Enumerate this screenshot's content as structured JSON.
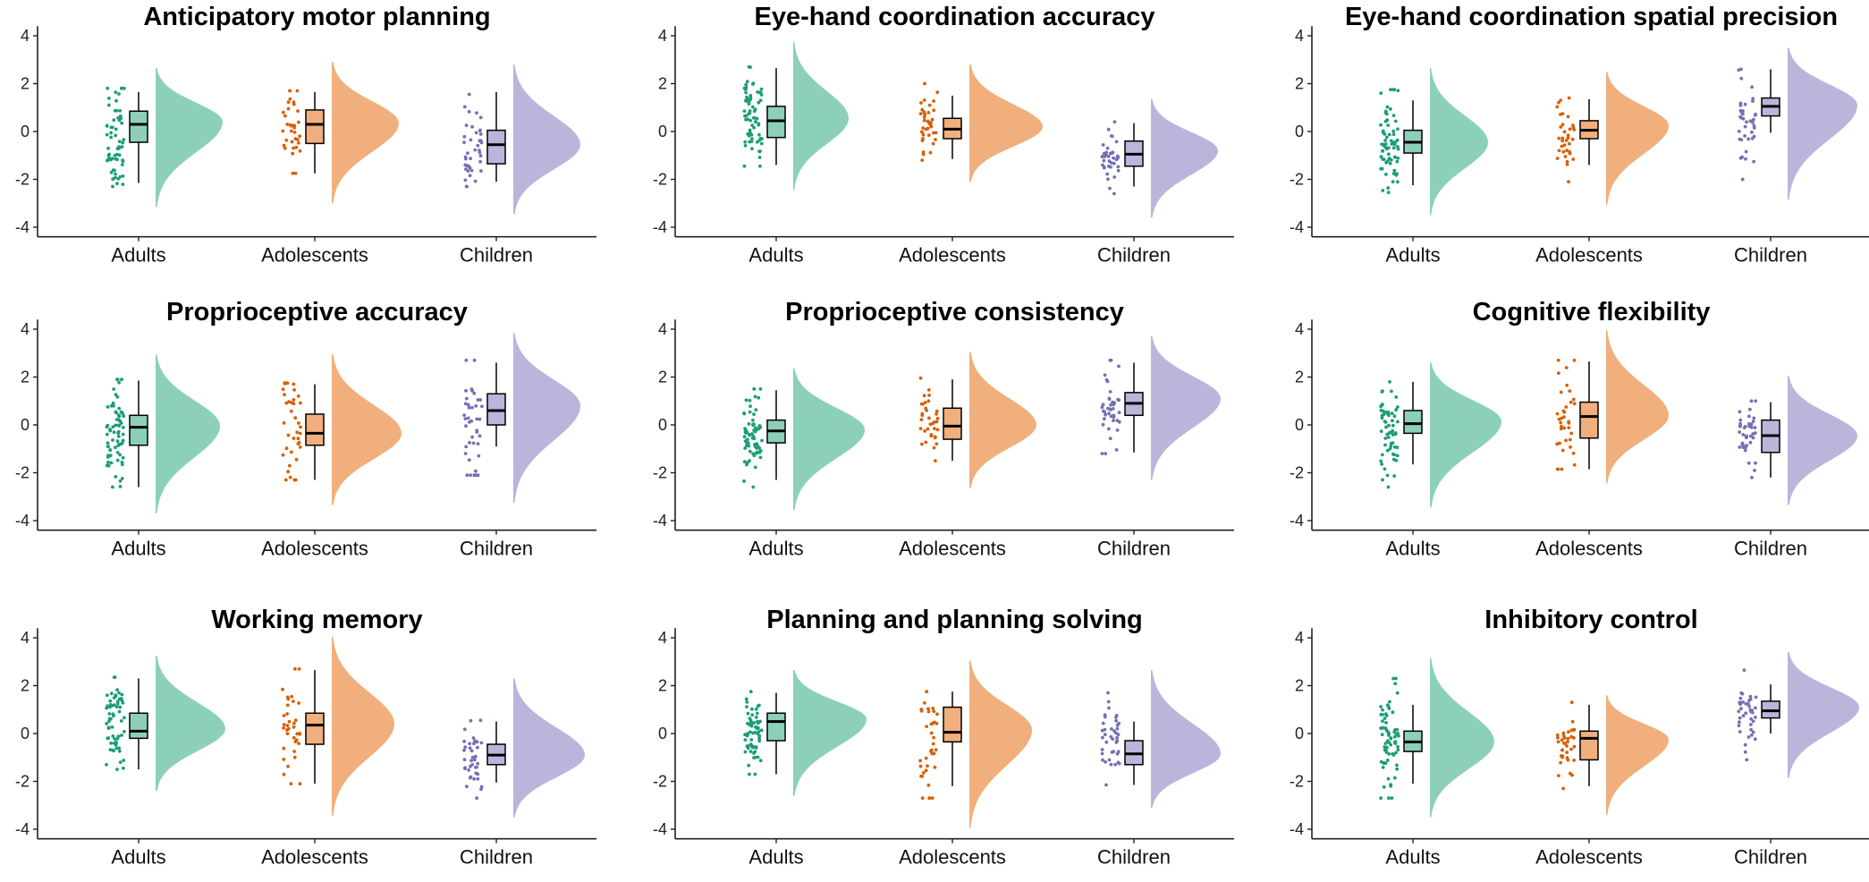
{
  "colors": {
    "Adults": {
      "dot": "#1b9e77",
      "fill": "#8dd0b8"
    },
    "Adolescents": {
      "dot": "#d95f02",
      "fill": "#f0af7c"
    },
    "Children": {
      "dot": "#7570b3",
      "fill": "#b9b5db"
    }
  },
  "chart_data": [
    {
      "type": "raincloud",
      "title": "Anticipatory motor planning",
      "categories": [
        "Adults",
        "Adolescents",
        "Children"
      ],
      "ylim": [
        -4.4,
        4.4
      ],
      "yticks": [
        -4,
        -2,
        0,
        2,
        4
      ],
      "groups": [
        {
          "name": "Adults",
          "q1": -0.45,
          "median": 0.3,
          "q3": 0.85,
          "wlo": -2.15,
          "whi": 1.65,
          "dmin": -3.15,
          "dmax": 2.65,
          "dpeak": 0.4,
          "dwidth": 75,
          "ptmin": -2.3,
          "ptmax": 1.8,
          "n": 62,
          "spread": 1.0,
          "seed": 11
        },
        {
          "name": "Adolescents",
          "q1": -0.5,
          "median": 0.3,
          "q3": 0.9,
          "wlo": -1.75,
          "whi": 1.65,
          "dmin": -3.0,
          "dmax": 2.9,
          "dpeak": 0.35,
          "dwidth": 75,
          "ptmin": -1.75,
          "ptmax": 1.7,
          "n": 36,
          "spread": 1.0,
          "seed": 23
        },
        {
          "name": "Children",
          "q1": -1.35,
          "median": -0.55,
          "q3": 0.05,
          "wlo": -2.1,
          "whi": 1.65,
          "dmin": -3.45,
          "dmax": 2.8,
          "dpeak": -0.55,
          "dwidth": 75,
          "ptmin": -2.3,
          "ptmax": 1.55,
          "n": 40,
          "spread": 1.0,
          "seed": 37
        }
      ]
    },
    {
      "type": "raincloud",
      "title": "Eye-hand coordination accuracy",
      "categories": [
        "Adults",
        "Adolescents",
        "Children"
      ],
      "ylim": [
        -4.4,
        4.4
      ],
      "yticks": [
        -4,
        -2,
        0,
        2,
        4
      ],
      "groups": [
        {
          "name": "Adults",
          "q1": -0.25,
          "median": 0.45,
          "q3": 1.05,
          "wlo": -1.4,
          "whi": 2.65,
          "dmin": -2.45,
          "dmax": 3.75,
          "dpeak": 0.55,
          "dwidth": 62,
          "ptmin": -1.45,
          "ptmax": 2.7,
          "n": 70,
          "spread": 1.0,
          "seed": 41
        },
        {
          "name": "Adolescents",
          "q1": -0.3,
          "median": 0.1,
          "q3": 0.55,
          "wlo": -1.15,
          "whi": 1.5,
          "dmin": -2.1,
          "dmax": 2.8,
          "dpeak": 0.2,
          "dwidth": 82,
          "ptmin": -1.2,
          "ptmax": 2.0,
          "n": 38,
          "spread": 0.8,
          "seed": 53
        },
        {
          "name": "Children",
          "q1": -1.45,
          "median": -0.95,
          "q3": -0.4,
          "wlo": -2.3,
          "whi": 0.35,
          "dmin": -3.6,
          "dmax": 1.35,
          "dpeak": -0.8,
          "dwidth": 75,
          "ptmin": -2.6,
          "ptmax": 0.4,
          "n": 40,
          "spread": 0.7,
          "seed": 67
        }
      ]
    },
    {
      "type": "raincloud",
      "title": "Eye-hand coordination spatial precision",
      "categories": [
        "Adults",
        "Adolescents",
        "Children"
      ],
      "ylim": [
        -4.4,
        4.4
      ],
      "yticks": [
        -4,
        -2,
        0,
        2,
        4
      ],
      "groups": [
        {
          "name": "Adults",
          "q1": -0.9,
          "median": -0.45,
          "q3": 0.05,
          "wlo": -2.25,
          "whi": 1.3,
          "dmin": -3.5,
          "dmax": 2.65,
          "dpeak": -0.45,
          "dwidth": 65,
          "ptmin": -2.55,
          "ptmax": 1.75,
          "n": 70,
          "spread": 0.9,
          "seed": 71
        },
        {
          "name": "Adolescents",
          "q1": -0.3,
          "median": 0.05,
          "q3": 0.45,
          "wlo": -1.4,
          "whi": 1.35,
          "dmin": -3.05,
          "dmax": 2.5,
          "dpeak": 0.25,
          "dwidth": 70,
          "ptmin": -2.1,
          "ptmax": 1.4,
          "n": 36,
          "spread": 0.75,
          "seed": 83
        },
        {
          "name": "Children",
          "q1": 0.65,
          "median": 1.05,
          "q3": 1.4,
          "wlo": -0.05,
          "whi": 2.6,
          "dmin": -2.85,
          "dmax": 3.5,
          "dpeak": 1.1,
          "dwidth": 78,
          "ptmin": -2.0,
          "ptmax": 2.6,
          "n": 40,
          "spread": 0.7,
          "seed": 97
        }
      ]
    },
    {
      "type": "raincloud",
      "title": "Proprioceptive accuracy",
      "categories": [
        "Adults",
        "Adolescents",
        "Children"
      ],
      "ylim": [
        -4.4,
        4.4
      ],
      "yticks": [
        -4,
        -2,
        0,
        2,
        4
      ],
      "groups": [
        {
          "name": "Adults",
          "q1": -0.85,
          "median": -0.1,
          "q3": 0.4,
          "wlo": -2.6,
          "whi": 1.85,
          "dmin": -3.7,
          "dmax": 2.95,
          "dpeak": -0.05,
          "dwidth": 72,
          "ptmin": -2.6,
          "ptmax": 1.9,
          "n": 70,
          "spread": 0.95,
          "seed": 103
        },
        {
          "name": "Adolescents",
          "q1": -0.85,
          "median": -0.35,
          "q3": 0.45,
          "wlo": -2.3,
          "whi": 1.7,
          "dmin": -3.35,
          "dmax": 2.95,
          "dpeak": -0.35,
          "dwidth": 78,
          "ptmin": -2.3,
          "ptmax": 1.75,
          "n": 38,
          "spread": 0.95,
          "seed": 113
        },
        {
          "name": "Children",
          "q1": 0.0,
          "median": 0.6,
          "q3": 1.3,
          "wlo": -0.9,
          "whi": 2.6,
          "dmin": -3.25,
          "dmax": 3.85,
          "dpeak": 0.8,
          "dwidth": 75,
          "ptmin": -2.1,
          "ptmax": 2.7,
          "n": 40,
          "spread": 1.0,
          "seed": 127
        }
      ]
    },
    {
      "type": "raincloud",
      "title": "Proprioceptive consistency",
      "categories": [
        "Adults",
        "Adolescents",
        "Children"
      ],
      "ylim": [
        -4.4,
        4.4
      ],
      "yticks": [
        -4,
        -2,
        0,
        2,
        4
      ],
      "groups": [
        {
          "name": "Adults",
          "q1": -0.75,
          "median": -0.25,
          "q3": 0.2,
          "wlo": -2.3,
          "whi": 1.45,
          "dmin": -3.55,
          "dmax": 2.35,
          "dpeak": -0.2,
          "dwidth": 80,
          "ptmin": -2.6,
          "ptmax": 1.5,
          "n": 70,
          "spread": 0.85,
          "seed": 131
        },
        {
          "name": "Adolescents",
          "q1": -0.6,
          "median": -0.05,
          "q3": 0.7,
          "wlo": -1.5,
          "whi": 1.9,
          "dmin": -2.65,
          "dmax": 3.05,
          "dpeak": 0.0,
          "dwidth": 75,
          "ptmin": -1.5,
          "ptmax": 1.95,
          "n": 36,
          "spread": 0.85,
          "seed": 149
        },
        {
          "name": "Children",
          "q1": 0.4,
          "median": 0.9,
          "q3": 1.35,
          "wlo": -1.15,
          "whi": 2.6,
          "dmin": -2.3,
          "dmax": 3.7,
          "dpeak": 1.1,
          "dwidth": 78,
          "ptmin": -1.2,
          "ptmax": 2.7,
          "n": 40,
          "spread": 0.85,
          "seed": 151
        }
      ]
    },
    {
      "type": "raincloud",
      "title": "Cognitive flexibility",
      "categories": [
        "Adults",
        "Adolescents",
        "Children"
      ],
      "ylim": [
        -4.4,
        4.4
      ],
      "yticks": [
        -4,
        -2,
        0,
        2,
        4
      ],
      "groups": [
        {
          "name": "Adults",
          "q1": -0.35,
          "median": 0.05,
          "q3": 0.6,
          "wlo": -1.65,
          "whi": 1.8,
          "dmin": -3.45,
          "dmax": 2.6,
          "dpeak": 0.15,
          "dwidth": 80,
          "ptmin": -2.6,
          "ptmax": 1.8,
          "n": 62,
          "spread": 0.85,
          "seed": 163
        },
        {
          "name": "Adolescents",
          "q1": -0.55,
          "median": 0.35,
          "q3": 0.95,
          "wlo": -1.85,
          "whi": 2.65,
          "dmin": -2.45,
          "dmax": 3.95,
          "dpeak": 0.4,
          "dwidth": 70,
          "ptmin": -1.85,
          "ptmax": 2.7,
          "n": 36,
          "spread": 1.0,
          "seed": 173
        },
        {
          "name": "Children",
          "q1": -1.15,
          "median": -0.45,
          "q3": 0.2,
          "wlo": -2.2,
          "whi": 0.95,
          "dmin": -3.35,
          "dmax": 2.05,
          "dpeak": -0.45,
          "dwidth": 78,
          "ptmin": -2.2,
          "ptmax": 1.0,
          "n": 40,
          "spread": 0.9,
          "seed": 181
        }
      ]
    },
    {
      "type": "raincloud",
      "title": "Working memory",
      "categories": [
        "Adults",
        "Adolescents",
        "Children"
      ],
      "ylim": [
        -4.4,
        4.4
      ],
      "yticks": [
        -4,
        -2,
        0,
        2,
        4
      ],
      "groups": [
        {
          "name": "Adults",
          "q1": -0.2,
          "median": 0.1,
          "q3": 0.85,
          "wlo": -1.5,
          "whi": 2.3,
          "dmin": -2.4,
          "dmax": 3.25,
          "dpeak": 0.2,
          "dwidth": 78,
          "ptmin": -1.5,
          "ptmax": 2.35,
          "n": 62,
          "spread": 0.9,
          "seed": 191
        },
        {
          "name": "Adolescents",
          "q1": -0.45,
          "median": 0.35,
          "q3": 0.85,
          "wlo": -2.1,
          "whi": 2.65,
          "dmin": -3.45,
          "dmax": 4.05,
          "dpeak": 0.4,
          "dwidth": 70,
          "ptmin": -2.1,
          "ptmax": 2.7,
          "n": 36,
          "spread": 1.0,
          "seed": 193
        },
        {
          "name": "Children",
          "q1": -1.3,
          "median": -0.9,
          "q3": -0.45,
          "wlo": -2.05,
          "whi": 0.5,
          "dmin": -3.5,
          "dmax": 2.3,
          "dpeak": -0.9,
          "dwidth": 80,
          "ptmin": -2.7,
          "ptmax": 0.55,
          "n": 40,
          "spread": 0.75,
          "seed": 197
        }
      ]
    },
    {
      "type": "raincloud",
      "title": "Planning and planning solving",
      "categories": [
        "Adults",
        "Adolescents",
        "Children"
      ],
      "ylim": [
        -4.4,
        4.4
      ],
      "yticks": [
        -4,
        -2,
        0,
        2,
        4
      ],
      "groups": [
        {
          "name": "Adults",
          "q1": -0.3,
          "median": 0.5,
          "q3": 0.85,
          "wlo": -1.7,
          "whi": 1.7,
          "dmin": -2.6,
          "dmax": 2.65,
          "dpeak": 0.6,
          "dwidth": 82,
          "ptmin": -1.7,
          "ptmax": 1.75,
          "n": 62,
          "spread": 0.9,
          "seed": 211
        },
        {
          "name": "Adolescents",
          "q1": -0.35,
          "median": 0.05,
          "q3": 1.1,
          "wlo": -2.2,
          "whi": 1.75,
          "dmin": -3.95,
          "dmax": 3.05,
          "dpeak": 0.15,
          "dwidth": 70,
          "ptmin": -2.7,
          "ptmax": 1.75,
          "n": 36,
          "spread": 1.0,
          "seed": 223
        },
        {
          "name": "Children",
          "q1": -1.3,
          "median": -0.85,
          "q3": -0.3,
          "wlo": -2.15,
          "whi": 0.5,
          "dmin": -3.1,
          "dmax": 2.65,
          "dpeak": -0.85,
          "dwidth": 78,
          "ptmin": -2.15,
          "ptmax": 1.7,
          "n": 40,
          "spread": 0.75,
          "seed": 227
        }
      ]
    },
    {
      "type": "raincloud",
      "title": "Inhibitory control",
      "categories": [
        "Adults",
        "Adolescents",
        "Children"
      ],
      "ylim": [
        -4.4,
        4.4
      ],
      "yticks": [
        -4,
        -2,
        0,
        2,
        4
      ],
      "groups": [
        {
          "name": "Adults",
          "q1": -0.75,
          "median": -0.35,
          "q3": 0.1,
          "wlo": -2.1,
          "whi": 1.2,
          "dmin": -3.5,
          "dmax": 3.15,
          "dpeak": -0.35,
          "dwidth": 72,
          "ptmin": -2.7,
          "ptmax": 2.3,
          "n": 70,
          "spread": 0.9,
          "seed": 229
        },
        {
          "name": "Adolescents",
          "q1": -1.1,
          "median": -0.2,
          "q3": 0.1,
          "wlo": -2.2,
          "whi": 1.2,
          "dmin": -3.4,
          "dmax": 1.6,
          "dpeak": -0.25,
          "dwidth": 70,
          "ptmin": -2.3,
          "ptmax": 1.3,
          "n": 36,
          "spread": 0.85,
          "seed": 233
        },
        {
          "name": "Children",
          "q1": 0.65,
          "median": 0.95,
          "q3": 1.35,
          "wlo": 0.0,
          "whi": 2.05,
          "dmin": -1.85,
          "dmax": 3.4,
          "dpeak": 1.1,
          "dwidth": 80,
          "ptmin": -1.1,
          "ptmax": 2.65,
          "n": 40,
          "spread": 0.65,
          "seed": 239
        }
      ]
    }
  ]
}
